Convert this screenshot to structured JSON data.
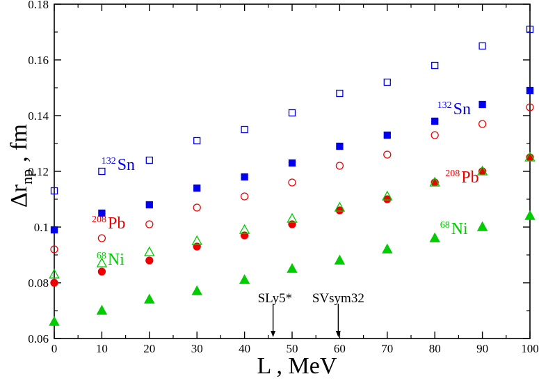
{
  "chart_data": {
    "type": "scatter",
    "title": "",
    "xlabel": {
      "main": "L , MeV"
    },
    "ylabel": {
      "delta": "Δr",
      "sub": "np",
      "tail": ", fm"
    },
    "xlim": [
      0,
      100
    ],
    "ylim": [
      0.06,
      0.18
    ],
    "xticks": [
      0,
      10,
      20,
      30,
      40,
      50,
      60,
      70,
      80,
      90,
      100
    ],
    "yticks": [
      0.06,
      0.08,
      0.1,
      0.12,
      0.14,
      0.16,
      0.18
    ],
    "xtick_labels": [
      "0",
      "10",
      "20",
      "30",
      "40",
      "50",
      "60",
      "70",
      "80",
      "90",
      "100"
    ],
    "ytick_labels": [
      "0.06",
      "0.08",
      "0.1",
      "0.12",
      "0.14",
      "0.16",
      "0.18"
    ],
    "grid": false,
    "series": [
      {
        "name": "132Sn open",
        "nucleus": "Sn",
        "marker": "square",
        "filled": false,
        "color": "#0000ee",
        "x": [
          0,
          10,
          20,
          30,
          40,
          50,
          60,
          70,
          80,
          90,
          100
        ],
        "y": [
          0.113,
          0.12,
          0.124,
          0.131,
          0.135,
          0.141,
          0.148,
          0.152,
          0.158,
          0.165,
          0.171
        ]
      },
      {
        "name": "132Sn filled",
        "nucleus": "Sn",
        "marker": "square",
        "filled": true,
        "color": "#0000ee",
        "x": [
          0,
          10,
          20,
          30,
          40,
          50,
          60,
          70,
          80,
          90,
          100
        ],
        "y": [
          0.099,
          0.105,
          0.108,
          0.114,
          0.118,
          0.123,
          0.129,
          0.133,
          0.138,
          0.144,
          0.149
        ]
      },
      {
        "name": "208Pb open",
        "nucleus": "Pb",
        "marker": "circle",
        "filled": false,
        "color": "#ee0000",
        "x": [
          0,
          10,
          20,
          30,
          40,
          50,
          60,
          70,
          80,
          90,
          100
        ],
        "y": [
          0.092,
          0.096,
          0.101,
          0.107,
          0.111,
          0.116,
          0.122,
          0.126,
          0.133,
          0.137,
          0.143
        ]
      },
      {
        "name": "208Pb filled",
        "nucleus": "Pb",
        "marker": "circle",
        "filled": true,
        "color": "#ee0000",
        "x": [
          0,
          10,
          20,
          30,
          40,
          50,
          60,
          70,
          80,
          90,
          100
        ],
        "y": [
          0.08,
          0.084,
          0.088,
          0.093,
          0.097,
          0.101,
          0.106,
          0.11,
          0.116,
          0.12,
          0.125
        ]
      },
      {
        "name": "68Ni open",
        "nucleus": "Ni",
        "marker": "triangle",
        "filled": false,
        "color": "#00cc00",
        "x": [
          0,
          10,
          20,
          30,
          40,
          50,
          60,
          70,
          80,
          90,
          100
        ],
        "y": [
          0.083,
          0.087,
          0.091,
          0.095,
          0.099,
          0.103,
          0.107,
          0.111,
          0.116,
          0.12,
          0.125
        ]
      },
      {
        "name": "68Ni filled",
        "nucleus": "Ni",
        "marker": "triangle",
        "filled": true,
        "color": "#00cc00",
        "x": [
          0,
          10,
          20,
          30,
          40,
          50,
          60,
          70,
          80,
          90,
          100
        ],
        "y": [
          0.066,
          0.07,
          0.074,
          0.077,
          0.081,
          0.085,
          0.088,
          0.092,
          0.096,
          0.1,
          0.104
        ]
      }
    ],
    "labels": [
      {
        "id": "sn-left",
        "mass": "132",
        "element": "Sn",
        "color": "#0000ee",
        "at": [
          9.9,
          0.1205
        ]
      },
      {
        "id": "pb-left",
        "mass": "208",
        "element": "Pb",
        "color": "#ee0000",
        "at": [
          7.9,
          0.0995
        ]
      },
      {
        "id": "ni-left",
        "mass": "68",
        "element": "Ni",
        "color": "#00cc00",
        "at": [
          8.9,
          0.0865
        ]
      },
      {
        "id": "sn-right",
        "mass": "132",
        "element": "Sn",
        "color": "#0000ee",
        "at": [
          80.5,
          0.1405
        ]
      },
      {
        "id": "pb-right",
        "mass": "208",
        "element": "Pb",
        "color": "#ee0000",
        "at": [
          82.2,
          0.116
        ]
      },
      {
        "id": "ni-right",
        "mass": "68",
        "element": "Ni",
        "color": "#00cc00",
        "at": [
          81.1,
          0.0975
        ]
      }
    ],
    "annotations": [
      {
        "id": "sly5",
        "text": "SLy5*",
        "x": 46,
        "label_x": 46.4,
        "label_y": 0.0745,
        "arrow_from": 0.0725,
        "arrow_to": 0.0605
      },
      {
        "id": "svsym32",
        "text": "SVsym32",
        "x": 59.7,
        "label_x": 59.7,
        "label_y": 0.0745,
        "arrow_from": 0.0725,
        "arrow_to": 0.0605
      }
    ]
  }
}
